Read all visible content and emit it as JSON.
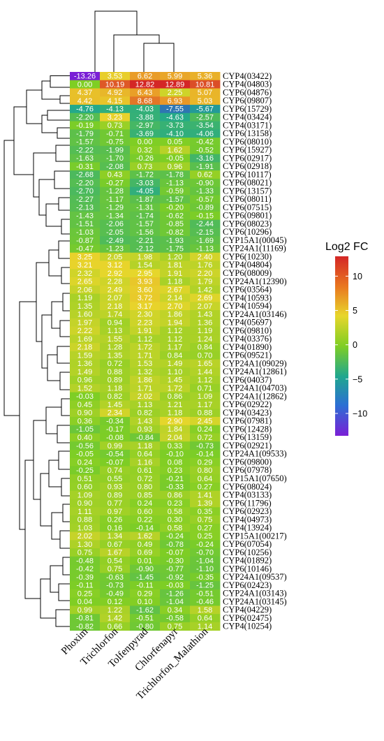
{
  "chart_data": {
    "type": "heatmap",
    "columns": [
      "Phoxim",
      "Trichlorfon",
      "Tolfenpyrad",
      "Chlorfenapyr",
      "Trichlorfon_Malathion"
    ],
    "rows": [
      "CYP4(03422)",
      "CYP4(04803)",
      "CYP6(04876)",
      "CYP6(09807)",
      "CYP6(15729)",
      "CYP4(03424)",
      "CYP4(03171)",
      "CYP6(13158)",
      "CYP6(08010)",
      "CYP6(15927)",
      "CYP6(02917)",
      "CYP6(02918)",
      "CYP6(10117)",
      "CYP6(08021)",
      "CYP6(13157)",
      "CYP6(08011)",
      "CYP6(07515)",
      "CYP6(09801)",
      "CYP6(08023)",
      "CYP6(10296)",
      "CYP15A1(00045)",
      "CYP24A1(11169)",
      "CYP6(10230)",
      "CYP4(04804)",
      "CYP6(08009)",
      "CYP24A1(12390)",
      "CYP6(03564)",
      "CYP4(10593)",
      "CYP4(10594)",
      "CYP24A1(03146)",
      "CYP4(05697)",
      "CYP6(09810)",
      "CYP4(03376)",
      "CYP4(01890)",
      "CYP6(09521)",
      "CYP24A1(09029)",
      "CYP24A1(12861)",
      "CYP6(04037)",
      "CYP24A1(04703)",
      "CYP24A1(12862)",
      "CYP6(02922)",
      "CYP4(03423)",
      "CYP6(07981)",
      "CYP6(12428)",
      "CYP6(13159)",
      "CYP6(02921)",
      "CYP24A1(09533)",
      "CYP6(09800)",
      "CYP6(07978)",
      "CYP15A1(07650)",
      "CYP6(08024)",
      "CYP4(03133)",
      "CYP6(11796)",
      "CYP6(02923)",
      "CYP4(04973)",
      "CYP4(13924)",
      "CYP15A1(00217)",
      "CYP6(07054)",
      "CYP6(10256)",
      "CYP4(01892)",
      "CYP6(10146)",
      "CYP24A1(09537)",
      "CYP6(02423)",
      "CYP24A1(03143)",
      "CYP24A1(03145)",
      "CYP4(04229)",
      "CYP6(02475)",
      "CYP4(10254)"
    ],
    "values": [
      [
        -13.26,
        3.53,
        6.62,
        5.99,
        5.36
      ],
      [
        0.0,
        10.19,
        12.82,
        12.89,
        10.81
      ],
      [
        4.37,
        4.92,
        6.43,
        2.25,
        5.07
      ],
      [
        4.42,
        4.15,
        8.68,
        6.93,
        5.03
      ],
      [
        -4.76,
        -4.13,
        -4.03,
        -7.55,
        -5.67
      ],
      [
        -2.2,
        3.23,
        -3.88,
        -4.63,
        -2.57
      ],
      [
        -0.19,
        0.73,
        -2.97,
        -3.73,
        -3.54
      ],
      [
        -1.79,
        -0.71,
        -3.69,
        -4.1,
        -4.06
      ],
      [
        -1.57,
        -0.75,
        0.0,
        0.05,
        -0.42
      ],
      [
        -2.22,
        -1.99,
        0.32,
        1.62,
        -0.52
      ],
      [
        -1.63,
        -1.7,
        -0.26,
        -0.05,
        -3.16
      ],
      [
        -0.31,
        -2.08,
        0.73,
        0.96,
        -1.91
      ],
      [
        -2.68,
        0.43,
        -1.72,
        -1.78,
        0.62
      ],
      [
        -2.2,
        -0.27,
        -3.03,
        -1.13,
        -0.9
      ],
      [
        -2.7,
        -1.28,
        -4.05,
        -0.59,
        -1.33
      ],
      [
        -2.27,
        -1.17,
        -1.87,
        -1.57,
        -0.57
      ],
      [
        -2.13,
        -1.29,
        -1.31,
        -0.2,
        -0.89
      ],
      [
        -1.43,
        -1.34,
        -1.74,
        -0.62,
        -0.15
      ],
      [
        -1.51,
        -2.06,
        -1.57,
        -0.85,
        -2.44
      ],
      [
        -1.03,
        -2.05,
        -1.56,
        -0.82,
        -2.15
      ],
      [
        -0.87,
        -2.49,
        -2.21,
        -1.93,
        -1.69
      ],
      [
        -0.47,
        -1.23,
        -2.12,
        -1.75,
        -1.13
      ],
      [
        3.25,
        2.05,
        1.98,
        1.2,
        2.4
      ],
      [
        3.21,
        3.12,
        1.54,
        1.81,
        1.76
      ],
      [
        2.32,
        2.92,
        2.95,
        1.91,
        2.2
      ],
      [
        2.65,
        2.28,
        3.93,
        1.18,
        1.79
      ],
      [
        2.06,
        2.49,
        3.6,
        2.67,
        1.42
      ],
      [
        1.19,
        2.07,
        3.72,
        2.14,
        2.69
      ],
      [
        1.35,
        2.18,
        3.17,
        2.7,
        2.07
      ],
      [
        1.6,
        1.74,
        2.3,
        1.86,
        1.43
      ],
      [
        1.97,
        0.94,
        2.23,
        1.94,
        1.36
      ],
      [
        2.22,
        1.13,
        1.91,
        1.12,
        1.19
      ],
      [
        1.69,
        1.55,
        1.12,
        1.12,
        1.24
      ],
      [
        2.18,
        1.28,
        1.72,
        1.17,
        0.84
      ],
      [
        1.59,
        1.35,
        1.71,
        0.84,
        0.7
      ],
      [
        1.36,
        0.72,
        1.53,
        1.49,
        1.65
      ],
      [
        1.49,
        0.88,
        1.32,
        1.1,
        1.44
      ],
      [
        0.96,
        0.89,
        1.86,
        1.45,
        1.12
      ],
      [
        1.52,
        1.18,
        1.71,
        1.72,
        0.71
      ],
      [
        -0.03,
        0.82,
        2.02,
        0.86,
        1.09
      ],
      [
        0.45,
        1.45,
        1.13,
        1.21,
        1.17
      ],
      [
        0.9,
        2.34,
        0.82,
        1.18,
        0.88
      ],
      [
        0.36,
        -0.34,
        1.43,
        2.9,
        2.45
      ],
      [
        -1.05,
        -0.17,
        0.93,
        1.84,
        0.24
      ],
      [
        0.4,
        -0.08,
        -0.84,
        2.04,
        0.72
      ],
      [
        -0.56,
        0.99,
        1.18,
        0.33,
        -0.73
      ],
      [
        -0.05,
        -0.54,
        0.64,
        -0.1,
        -0.14
      ],
      [
        0.24,
        -0.07,
        1.16,
        0.08,
        0.29
      ],
      [
        -0.25,
        0.74,
        0.61,
        0.23,
        0.8
      ],
      [
        0.51,
        0.55,
        0.72,
        -0.21,
        0.64
      ],
      [
        0.6,
        0.93,
        0.8,
        -0.33,
        0.27
      ],
      [
        1.09,
        0.89,
        0.85,
        0.86,
        1.41
      ],
      [
        0.9,
        0.77,
        0.24,
        0.23,
        1.39
      ],
      [
        1.11,
        0.97,
        0.6,
        0.58,
        0.35
      ],
      [
        0.88,
        0.26,
        0.22,
        0.3,
        0.75
      ],
      [
        1.03,
        0.16,
        -0.14,
        0.58,
        0.27
      ],
      [
        2.02,
        1.34,
        1.62,
        -0.24,
        0.25
      ],
      [
        1.3,
        0.67,
        0.49,
        -0.78,
        -0.24
      ],
      [
        0.75,
        1.67,
        0.69,
        -0.07,
        -0.7
      ],
      [
        -0.48,
        0.54,
        0.01,
        -0.3,
        -1.04
      ],
      [
        -0.42,
        0.75,
        -0.9,
        -0.77,
        -1.1
      ],
      [
        -0.39,
        -0.63,
        -1.45,
        -0.92,
        -0.35
      ],
      [
        -0.11,
        -0.73,
        -0.11,
        -0.03,
        -1.25
      ],
      [
        0.25,
        -0.49,
        0.29,
        -1.26,
        -0.51
      ],
      [
        0.04,
        0.12,
        0.1,
        -1.04,
        -0.46
      ],
      [
        0.99,
        1.22,
        -1.62,
        0.34,
        1.58
      ],
      [
        -0.81,
        1.42,
        -0.51,
        -0.58,
        0.64
      ],
      [
        -0.82,
        0.66,
        -0.8,
        0.75,
        1.14
      ]
    ],
    "colorbar": {
      "title": "Log2 FC",
      "ticks": [
        10,
        5,
        0,
        -5,
        -10
      ],
      "range": [
        -13.26,
        12.89
      ],
      "colors": [
        "#7a1fd6",
        "#2c6fd4",
        "#1fa78f",
        "#7fce24",
        "#e8d62b",
        "#e9781f",
        "#d42626"
      ]
    },
    "title": "",
    "xlabel": "",
    "ylabel": ""
  }
}
